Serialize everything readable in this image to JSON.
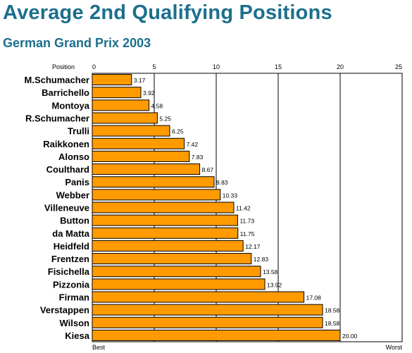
{
  "title": "Average 2nd Qualifying Positions",
  "subtitle": "German Grand Prix 2003",
  "colors": {
    "title": "#1c6f8c",
    "bar_fill": "#ff9a00",
    "bar_stroke": "#000000",
    "frame": "#000000"
  },
  "chart_data": {
    "type": "bar",
    "orientation": "horizontal",
    "title": "Average 2nd Qualifying Positions",
    "subtitle": "German Grand Prix 2003",
    "axis_label": "Position",
    "x_ticks": [
      0,
      5,
      10,
      15,
      20,
      25
    ],
    "xlim": [
      0,
      25
    ],
    "grid": true,
    "axis_end_labels": {
      "left": "Best",
      "right": "Worst"
    },
    "categories": [
      "M.Schumacher",
      "Barrichello",
      "Montoya",
      "R.Schumacher",
      "Trulli",
      "Raikkonen",
      "Alonso",
      "Coulthard",
      "Panis",
      "Webber",
      "Villeneuve",
      "Button",
      "da Matta",
      "Heidfeld",
      "Frentzen",
      "Fisichella",
      "Pizzonia",
      "Firman",
      "Verstappen",
      "Wilson",
      "Kiesa"
    ],
    "values": [
      3.17,
      3.92,
      4.58,
      5.25,
      6.25,
      7.42,
      7.83,
      8.67,
      9.83,
      10.33,
      11.42,
      11.73,
      11.75,
      12.17,
      12.83,
      13.58,
      13.92,
      17.08,
      18.58,
      18.58,
      20.0
    ],
    "value_labels": [
      "3.17",
      "3.92",
      "4.58",
      "5.25",
      "6.25",
      "7.42",
      "7.83",
      "8.67",
      "9.83",
      "10.33",
      "11.42",
      "11.73",
      "11.75",
      "12.17",
      "12.83",
      "13.58",
      "13.92",
      "17.08",
      "18.58",
      "18.58",
      "20.00"
    ]
  }
}
